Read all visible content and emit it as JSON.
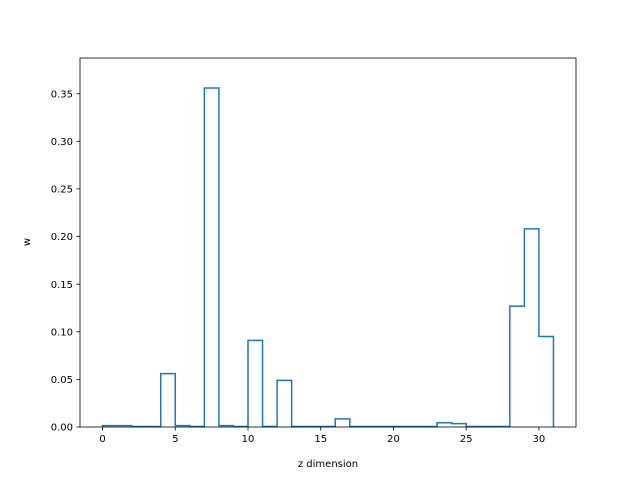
{
  "chart_data": {
    "type": "step",
    "xlabel": "z dimension",
    "ylabel": "w",
    "xlim": [
      -1.55,
      32.55
    ],
    "ylim": [
      0,
      0.3875
    ],
    "x_ticks": [
      0,
      5,
      10,
      15,
      20,
      25,
      30
    ],
    "x_tick_labels": [
      "0",
      "5",
      "10",
      "15",
      "20",
      "25",
      "30"
    ],
    "y_ticks": [
      0.0,
      0.05,
      0.1,
      0.15,
      0.2,
      0.25,
      0.3,
      0.35
    ],
    "y_tick_labels": [
      "0.00",
      "0.05",
      "0.10",
      "0.15",
      "0.20",
      "0.25",
      "0.30",
      "0.35"
    ],
    "bin_edges": [
      0,
      1,
      2,
      3,
      4,
      5,
      6,
      7,
      8,
      9,
      10,
      11,
      12,
      13,
      14,
      15,
      16,
      17,
      18,
      19,
      20,
      21,
      22,
      23,
      24,
      25,
      26,
      27,
      28,
      29,
      30,
      31
    ],
    "values": [
      0.0015,
      0.0015,
      0.0005,
      0.0005,
      0.056,
      0.0015,
      0.0005,
      0.356,
      0.0015,
      0.0005,
      0.091,
      0.0005,
      0.049,
      0.0005,
      0.0005,
      0.0005,
      0.0085,
      0.0005,
      0.0005,
      0.0005,
      0.0005,
      0.0005,
      0.0005,
      0.0045,
      0.0035,
      0.0005,
      0.0005,
      0.0005,
      0.127,
      0.208,
      0.095
    ],
    "grid": false,
    "legend": "none",
    "line_color": "#1f77b4"
  }
}
